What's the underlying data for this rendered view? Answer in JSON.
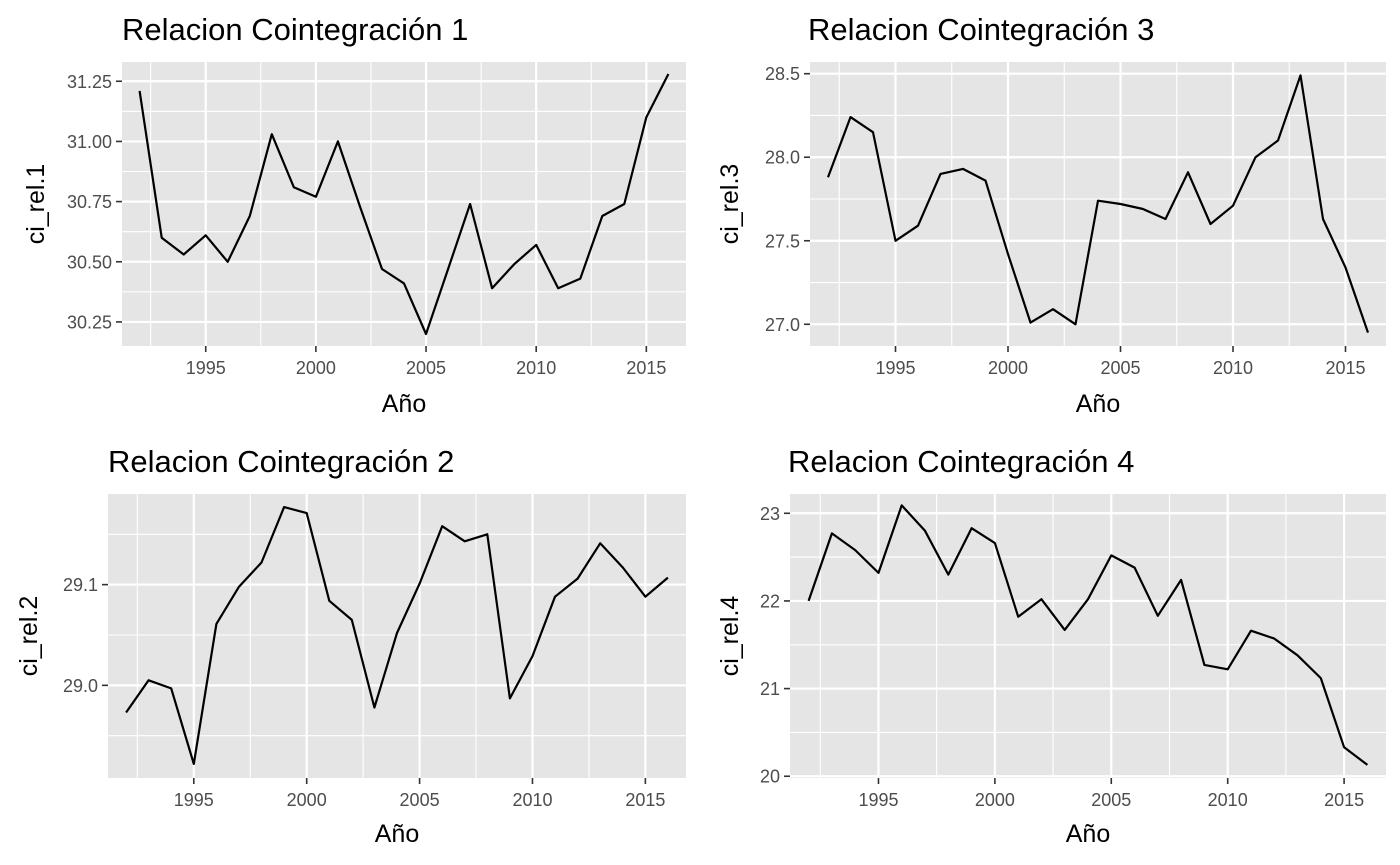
{
  "chart_data": [
    {
      "type": "line",
      "title": "Relacion Cointegración 1",
      "xlabel": "Año",
      "ylabel": "ci_rel.1",
      "x": [
        1992,
        1993,
        1994,
        1995,
        1996,
        1997,
        1998,
        1999,
        2000,
        2001,
        2002,
        2003,
        2004,
        2005,
        2006,
        2007,
        2008,
        2009,
        2010,
        2011,
        2012,
        2013,
        2014,
        2015,
        2016
      ],
      "values": [
        31.21,
        30.6,
        30.53,
        30.61,
        30.5,
        30.69,
        31.03,
        30.81,
        30.77,
        31.0,
        30.73,
        30.47,
        30.41,
        30.2,
        30.47,
        30.74,
        30.39,
        30.49,
        30.57,
        30.39,
        30.43,
        30.69,
        30.74,
        31.1,
        31.28
      ],
      "xlim": [
        1991.2,
        2016.8
      ],
      "ylim": [
        30.15,
        31.33
      ],
      "xticks": [
        1995,
        2000,
        2005,
        2010,
        2015
      ],
      "xtick_labels": [
        "1995",
        "2000",
        "2005",
        "2010",
        "2015"
      ],
      "yticks": [
        30.25,
        30.5,
        30.75,
        31.0,
        31.25
      ],
      "ytick_labels": [
        "30.25",
        "30.50",
        "30.75",
        "31.00",
        "31.25"
      ],
      "grid": true
    },
    {
      "type": "line",
      "title": "Relacion Cointegración 3",
      "xlabel": "Año",
      "ylabel": "ci_rel.3",
      "x": [
        1992,
        1993,
        1994,
        1995,
        1996,
        1997,
        1998,
        1999,
        2000,
        2001,
        2002,
        2003,
        2004,
        2005,
        2006,
        2007,
        2008,
        2009,
        2010,
        2011,
        2012,
        2013,
        2014,
        2015,
        2016
      ],
      "values": [
        27.88,
        28.24,
        28.15,
        27.5,
        27.59,
        27.9,
        27.93,
        27.86,
        27.42,
        27.01,
        27.09,
        27.0,
        27.74,
        27.72,
        27.69,
        27.63,
        27.91,
        27.6,
        27.71,
        28.0,
        28.1,
        28.49,
        27.63,
        27.34,
        26.95
      ],
      "xlim": [
        1991.2,
        2016.8
      ],
      "ylim": [
        26.87,
        28.57
      ],
      "xticks": [
        1995,
        2000,
        2005,
        2010,
        2015
      ],
      "xtick_labels": [
        "1995",
        "2000",
        "2005",
        "2010",
        "2015"
      ],
      "yticks": [
        27.0,
        27.5,
        28.0,
        28.5
      ],
      "ytick_labels": [
        "27.0",
        "27.5",
        "28.0",
        "28.5"
      ],
      "grid": true
    },
    {
      "type": "line",
      "title": "Relacion Cointegración 2",
      "xlabel": "Año",
      "ylabel": "ci_rel.2",
      "x": [
        1992,
        1993,
        1994,
        1995,
        1996,
        1997,
        1998,
        1999,
        2000,
        2001,
        2002,
        2003,
        2004,
        2005,
        2006,
        2007,
        2008,
        2009,
        2010,
        2011,
        2012,
        2013,
        2014,
        2015,
        2016
      ],
      "values": [
        28.973,
        29.005,
        28.997,
        28.922,
        29.061,
        29.098,
        29.122,
        29.177,
        29.171,
        29.084,
        29.065,
        28.978,
        29.052,
        29.101,
        29.158,
        29.143,
        29.15,
        28.987,
        29.029,
        29.088,
        29.106,
        29.141,
        29.117,
        29.088,
        29.107
      ],
      "xlim": [
        1991.2,
        2016.8
      ],
      "ylim": [
        28.908,
        29.19
      ],
      "xticks": [
        1995,
        2000,
        2005,
        2010,
        2015
      ],
      "xtick_labels": [
        "1995",
        "2000",
        "2005",
        "2010",
        "2015"
      ],
      "yticks": [
        29.0,
        29.1
      ],
      "ytick_labels": [
        "29.0",
        "29.1"
      ],
      "grid": true
    },
    {
      "type": "line",
      "title": "Relacion Cointegración 4",
      "xlabel": "Año",
      "ylabel": "ci_rel.4",
      "x": [
        1992,
        1993,
        1994,
        1995,
        1996,
        1997,
        1998,
        1999,
        2000,
        2001,
        2002,
        2003,
        2004,
        2005,
        2006,
        2007,
        2008,
        2009,
        2010,
        2011,
        2012,
        2013,
        2014,
        2015,
        2016
      ],
      "values": [
        22.0,
        22.77,
        22.58,
        22.32,
        23.09,
        22.8,
        22.3,
        22.83,
        22.66,
        21.82,
        22.02,
        21.67,
        22.02,
        22.52,
        22.38,
        21.83,
        22.24,
        21.27,
        21.22,
        21.66,
        21.57,
        21.38,
        21.12,
        20.33,
        20.13
      ],
      "xlim": [
        1991.2,
        2016.8
      ],
      "ylim": [
        19.98,
        23.22
      ],
      "xticks": [
        1995,
        2000,
        2005,
        2010,
        2015
      ],
      "xtick_labels": [
        "1995",
        "2000",
        "2005",
        "2010",
        "2015"
      ],
      "yticks": [
        20,
        21,
        22,
        23
      ],
      "ytick_labels": [
        "20",
        "21",
        "22",
        "23"
      ],
      "grid": true
    }
  ]
}
